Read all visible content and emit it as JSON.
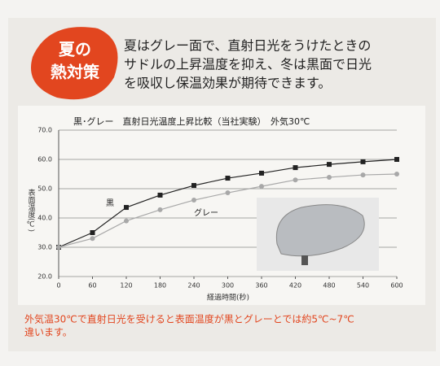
{
  "badge": {
    "lines": [
      "夏の",
      "熱対策"
    ]
  },
  "description": [
    "夏はグレー面で、直射日光をうけたときの",
    "サドルの上昇温度を抑え、冬は黒面で日光",
    "を吸収し保温効果が期待できます。"
  ],
  "chart_data": {
    "type": "line",
    "title": "黒･グレー　直射日光温度上昇比較（当社実験）　外気30℃",
    "xlabel": "経過時間(秒)",
    "ylabel": "表面温度(℃)",
    "x": [
      0,
      60,
      120,
      180,
      240,
      300,
      360,
      420,
      480,
      540,
      600
    ],
    "xlim": [
      0,
      600
    ],
    "xticks": [
      0,
      60,
      120,
      180,
      240,
      300,
      360,
      420,
      480,
      540,
      600
    ],
    "ylim": [
      20,
      70
    ],
    "yticks": [
      {
        "value": 20,
        "label": "20.0"
      },
      {
        "value": 30,
        "label": "30.0"
      },
      {
        "value": 40,
        "label": "40.0"
      },
      {
        "value": 50,
        "label": "50.0"
      },
      {
        "value": 60,
        "label": "60.0"
      },
      {
        "value": 70,
        "label": "70.0"
      }
    ],
    "grid": true,
    "series": [
      {
        "name": "黒",
        "color": "#222222",
        "marker": "square",
        "values": [
          30,
          35,
          43.6,
          47.8,
          51.1,
          53.6,
          55.3,
          57.2,
          58.3,
          59.2,
          60
        ]
      },
      {
        "name": "グレー",
        "color": "#a8a8a8",
        "marker": "circle",
        "values": [
          30,
          33,
          39,
          42.8,
          46.1,
          48.6,
          50.8,
          53,
          53.9,
          54.7,
          55
        ]
      }
    ]
  },
  "footnote": [
    "外気温30℃で直射日光を受けると表面温度が黒とグレーとでは約5℃~7℃",
    "違います。"
  ]
}
